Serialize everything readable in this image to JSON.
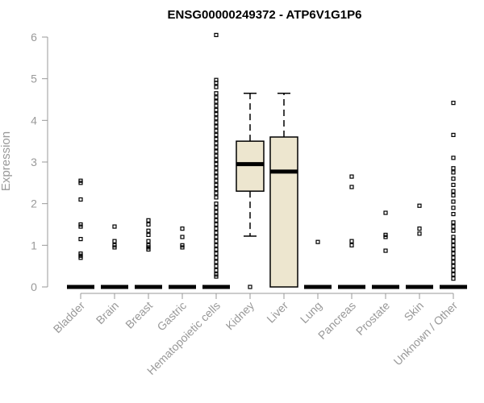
{
  "chart_data": {
    "type": "box",
    "title": "ENSG00000249372 - ATP6V1G1P6",
    "ylabel": "Expression",
    "xlabel": "",
    "ylim": [
      0,
      6.2
    ],
    "yticks": [
      0,
      1,
      2,
      3,
      4,
      5,
      6
    ],
    "grid": false,
    "legend": "none",
    "colors": {
      "box_fill": "#ede6cf",
      "stroke": "#000000",
      "axis": "#999999"
    },
    "categories": [
      "Bladder",
      "Brain",
      "Breast",
      "Gastric",
      "Hematopoietic cells",
      "Kidney",
      "Liver",
      "Lung",
      "Pancreas",
      "Prostate",
      "Skin",
      "Unknown / Other"
    ],
    "boxes": [
      {
        "category": "Bladder",
        "min": 0,
        "q1": 0,
        "median": 0,
        "q3": 0,
        "max": 0,
        "outliers": [
          2.55,
          2.5,
          2.1,
          1.5,
          1.45,
          1.15,
          0.8,
          0.75,
          0.7
        ]
      },
      {
        "category": "Brain",
        "min": 0,
        "q1": 0,
        "median": 0,
        "q3": 0,
        "max": 0,
        "outliers": [
          1.45,
          1.1,
          1.0,
          0.95
        ]
      },
      {
        "category": "Breast",
        "min": 0,
        "q1": 0,
        "median": 0,
        "q3": 0,
        "max": 0,
        "outliers": [
          1.6,
          1.5,
          1.35,
          1.25,
          1.1,
          1.0,
          0.95,
          0.9
        ]
      },
      {
        "category": "Gastric",
        "min": 0,
        "q1": 0,
        "median": 0,
        "q3": 0,
        "max": 0,
        "outliers": [
          1.4,
          1.2,
          1.0,
          0.95
        ]
      },
      {
        "category": "Hematopoietic cells",
        "min": 0,
        "q1": 0,
        "median": 0,
        "q3": 0,
        "max": 0,
        "outliers": [
          6.05,
          4.97,
          4.9,
          4.8,
          4.65,
          4.55,
          4.45,
          4.35,
          4.25,
          4.15,
          4.05,
          3.95,
          3.85,
          3.75,
          3.65,
          3.55,
          3.45,
          3.35,
          3.25,
          3.15,
          3.05,
          2.95,
          2.85,
          2.75,
          2.65,
          2.55,
          2.45,
          2.35,
          2.25,
          2.15,
          2.0,
          1.9,
          1.8,
          1.7,
          1.6,
          1.5,
          1.4,
          1.3,
          1.2,
          1.1,
          1.0,
          0.9,
          0.8,
          0.7,
          0.6,
          0.5,
          0.4,
          0.3,
          0.25
        ]
      },
      {
        "category": "Kidney",
        "min": 1.22,
        "q1": 2.3,
        "median": 2.95,
        "q3": 3.5,
        "max": 4.65,
        "outliers": [
          0
        ]
      },
      {
        "category": "Liver",
        "min": 0,
        "q1": 0,
        "median": 2.77,
        "q3": 3.6,
        "max": 4.65,
        "outliers": []
      },
      {
        "category": "Lung",
        "min": 0,
        "q1": 0,
        "median": 0,
        "q3": 0,
        "max": 0,
        "outliers": [
          1.08
        ]
      },
      {
        "category": "Pancreas",
        "min": 0,
        "q1": 0,
        "median": 0,
        "q3": 0,
        "max": 0,
        "outliers": [
          2.65,
          2.4,
          1.1,
          1.0
        ]
      },
      {
        "category": "Prostate",
        "min": 0,
        "q1": 0,
        "median": 0,
        "q3": 0,
        "max": 0,
        "outliers": [
          1.78,
          1.25,
          1.2,
          0.87
        ]
      },
      {
        "category": "Skin",
        "min": 0,
        "q1": 0,
        "median": 0,
        "q3": 0,
        "max": 0,
        "outliers": [
          1.95,
          1.4,
          1.28
        ]
      },
      {
        "category": "Unknown / Other",
        "min": 0,
        "q1": 0,
        "median": 0,
        "q3": 0,
        "max": 0,
        "outliers": [
          4.42,
          3.65,
          3.1,
          2.85,
          2.75,
          2.6,
          2.45,
          2.3,
          2.2,
          2.05,
          1.9,
          1.75,
          1.55,
          1.45,
          1.35,
          1.2,
          1.1,
          1.0,
          0.9,
          0.8,
          0.7,
          0.6,
          0.5,
          0.4,
          0.3,
          0.2
        ]
      }
    ]
  }
}
